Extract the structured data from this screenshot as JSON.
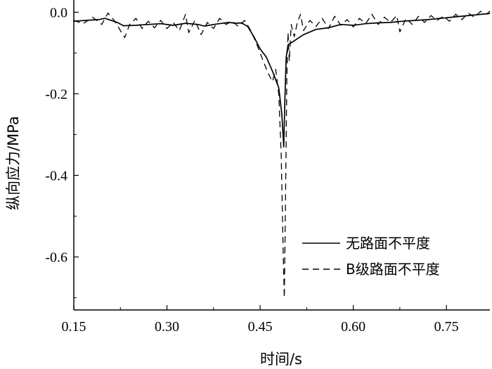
{
  "chart_data": {
    "type": "line",
    "title": "",
    "xlabel": "时间/s",
    "ylabel": "纵向应力/MPa",
    "xlim": [
      0.15,
      0.82
    ],
    "ylim": [
      -0.73,
      0.03
    ],
    "grid": false,
    "legend_position": "bottom-right",
    "x_ticks": [
      {
        "value": 0.15,
        "label": "0.15"
      },
      {
        "value": 0.3,
        "label": "0.30"
      },
      {
        "value": 0.45,
        "label": "0.45"
      },
      {
        "value": 0.6,
        "label": "0.60"
      },
      {
        "value": 0.75,
        "label": "0.75"
      }
    ],
    "y_ticks": [
      {
        "value": 0.0,
        "label": "0.0"
      },
      {
        "value": -0.2,
        "label": "-0.2"
      },
      {
        "value": -0.4,
        "label": "-0.4"
      },
      {
        "value": -0.6,
        "label": "-0.6"
      }
    ],
    "series": [
      {
        "name": "无路面不平度",
        "style": "solid",
        "color": "#000000",
        "points": [
          [
            0.15,
            -0.022
          ],
          [
            0.17,
            -0.02
          ],
          [
            0.19,
            -0.018
          ],
          [
            0.2,
            -0.015
          ],
          [
            0.22,
            -0.025
          ],
          [
            0.23,
            -0.033
          ],
          [
            0.25,
            -0.032
          ],
          [
            0.27,
            -0.03
          ],
          [
            0.29,
            -0.028
          ],
          [
            0.31,
            -0.032
          ],
          [
            0.33,
            -0.027
          ],
          [
            0.35,
            -0.03
          ],
          [
            0.36,
            -0.034
          ],
          [
            0.38,
            -0.029
          ],
          [
            0.4,
            -0.025
          ],
          [
            0.41,
            -0.027
          ],
          [
            0.42,
            -0.026
          ],
          [
            0.43,
            -0.035
          ],
          [
            0.44,
            -0.06
          ],
          [
            0.45,
            -0.09
          ],
          [
            0.46,
            -0.11
          ],
          [
            0.47,
            -0.145
          ],
          [
            0.48,
            -0.185
          ],
          [
            0.485,
            -0.25
          ],
          [
            0.488,
            -0.33
          ],
          [
            0.49,
            -0.21
          ],
          [
            0.492,
            -0.11
          ],
          [
            0.495,
            -0.08
          ],
          [
            0.5,
            -0.075
          ],
          [
            0.51,
            -0.065
          ],
          [
            0.52,
            -0.055
          ],
          [
            0.54,
            -0.042
          ],
          [
            0.56,
            -0.038
          ],
          [
            0.58,
            -0.03
          ],
          [
            0.6,
            -0.032
          ],
          [
            0.62,
            -0.028
          ],
          [
            0.64,
            -0.026
          ],
          [
            0.66,
            -0.025
          ],
          [
            0.68,
            -0.022
          ],
          [
            0.7,
            -0.02
          ],
          [
            0.72,
            -0.018
          ],
          [
            0.74,
            -0.015
          ],
          [
            0.76,
            -0.012
          ],
          [
            0.78,
            -0.009
          ],
          [
            0.8,
            -0.006
          ],
          [
            0.82,
            -0.003
          ]
        ]
      },
      {
        "name": "B级路面不平度",
        "style": "dashed",
        "color": "#000000",
        "points": [
          [
            0.15,
            -0.02
          ],
          [
            0.165,
            -0.028
          ],
          [
            0.18,
            -0.012
          ],
          [
            0.195,
            -0.03
          ],
          [
            0.205,
            -0.002
          ],
          [
            0.215,
            -0.02
          ],
          [
            0.225,
            -0.045
          ],
          [
            0.232,
            -0.062
          ],
          [
            0.24,
            -0.03
          ],
          [
            0.25,
            -0.015
          ],
          [
            0.26,
            -0.04
          ],
          [
            0.27,
            -0.022
          ],
          [
            0.28,
            -0.038
          ],
          [
            0.29,
            -0.02
          ],
          [
            0.3,
            -0.04
          ],
          [
            0.31,
            -0.025
          ],
          [
            0.32,
            -0.045
          ],
          [
            0.33,
            -0.005
          ],
          [
            0.335,
            -0.05
          ],
          [
            0.345,
            -0.02
          ],
          [
            0.355,
            -0.055
          ],
          [
            0.365,
            -0.025
          ],
          [
            0.375,
            -0.04
          ],
          [
            0.385,
            -0.015
          ],
          [
            0.395,
            -0.03
          ],
          [
            0.405,
            -0.022
          ],
          [
            0.415,
            -0.035
          ],
          [
            0.425,
            -0.02
          ],
          [
            0.435,
            -0.045
          ],
          [
            0.445,
            -0.08
          ],
          [
            0.455,
            -0.12
          ],
          [
            0.463,
            -0.15
          ],
          [
            0.47,
            -0.17
          ],
          [
            0.475,
            -0.14
          ],
          [
            0.48,
            -0.2
          ],
          [
            0.484,
            -0.35
          ],
          [
            0.487,
            -0.58
          ],
          [
            0.489,
            -0.7
          ],
          [
            0.491,
            -0.45
          ],
          [
            0.493,
            -0.16
          ],
          [
            0.495,
            -0.05
          ],
          [
            0.497,
            -0.12
          ],
          [
            0.5,
            -0.03
          ],
          [
            0.505,
            -0.06
          ],
          [
            0.51,
            -0.025
          ],
          [
            0.515,
            -0.005
          ],
          [
            0.52,
            -0.045
          ],
          [
            0.53,
            -0.02
          ],
          [
            0.54,
            -0.035
          ],
          [
            0.55,
            -0.015
          ],
          [
            0.56,
            -0.04
          ],
          [
            0.57,
            -0.01
          ],
          [
            0.58,
            -0.032
          ],
          [
            0.59,
            -0.018
          ],
          [
            0.6,
            -0.036
          ],
          [
            0.61,
            -0.015
          ],
          [
            0.62,
            -0.028
          ],
          [
            0.63,
            -0.005
          ],
          [
            0.64,
            -0.03
          ],
          [
            0.65,
            -0.012
          ],
          [
            0.66,
            -0.025
          ],
          [
            0.67,
            -0.008
          ],
          [
            0.675,
            -0.048
          ],
          [
            0.685,
            -0.015
          ],
          [
            0.695,
            -0.03
          ],
          [
            0.705,
            -0.01
          ],
          [
            0.715,
            -0.025
          ],
          [
            0.725,
            -0.008
          ],
          [
            0.735,
            -0.02
          ],
          [
            0.745,
            -0.01
          ],
          [
            0.755,
            -0.022
          ],
          [
            0.765,
            -0.005
          ],
          [
            0.775,
            -0.018
          ],
          [
            0.785,
            -0.002
          ],
          [
            0.795,
            -0.012
          ],
          [
            0.805,
            0.002
          ],
          [
            0.815,
            -0.005
          ],
          [
            0.82,
            0.003
          ]
        ]
      }
    ]
  }
}
